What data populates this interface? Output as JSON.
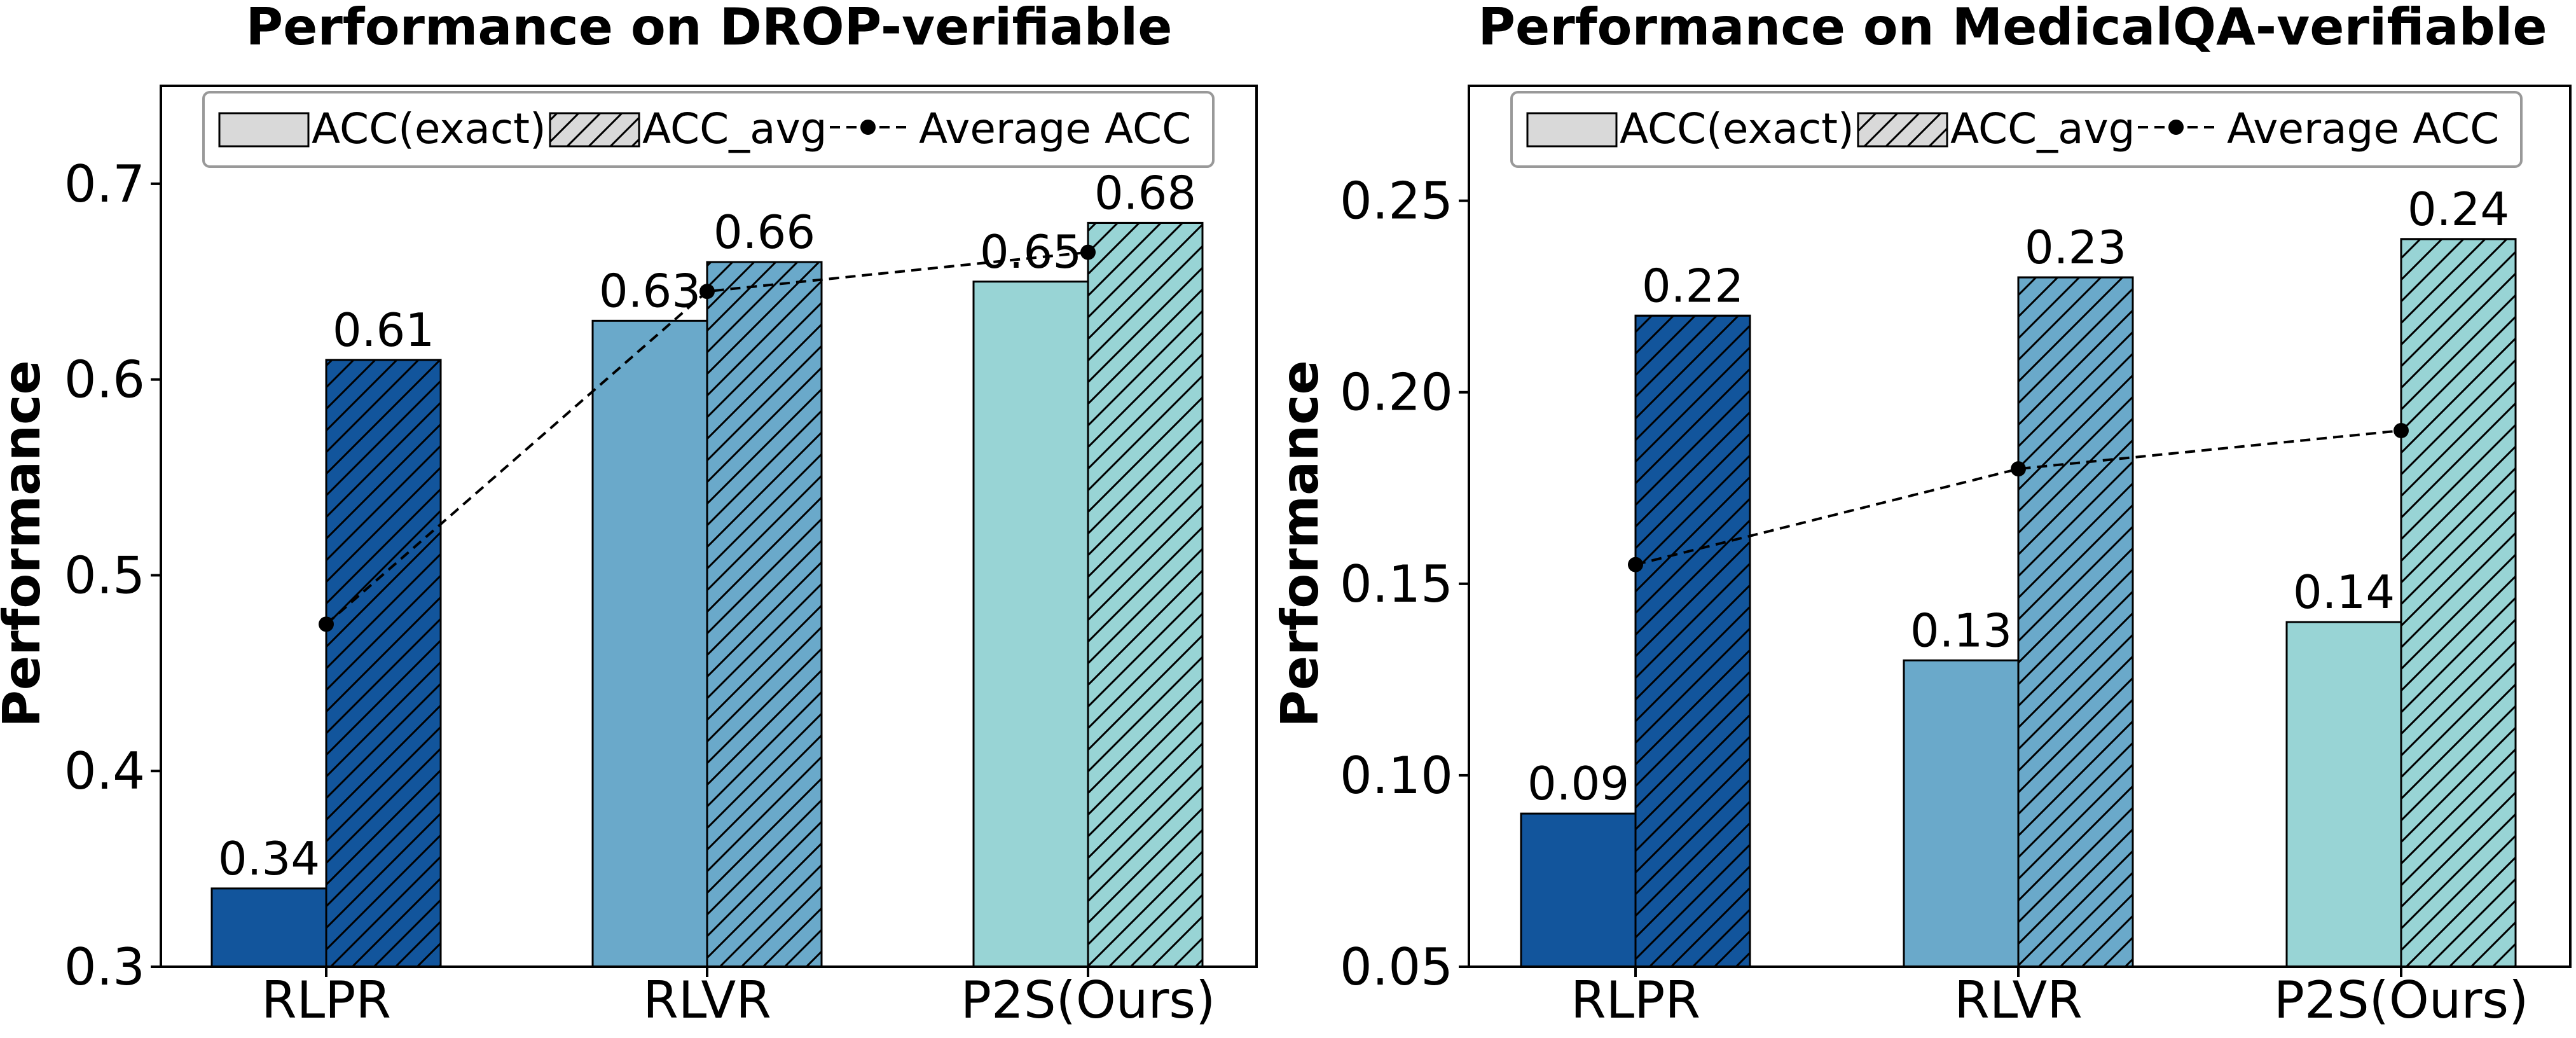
{
  "colors": {
    "RLPR": "#12559c",
    "RLVR": "#6aa9ca",
    "P2S(Ours)": "#98d4d5",
    "legend_swatch": "#d9d9d9",
    "line": "#000000"
  },
  "legend": {
    "exact": "ACC(exact)",
    "avg": "ACC_avg",
    "average": "Average ACC"
  },
  "chart_data": [
    {
      "type": "bar",
      "title": "Performance on DROP-verifiable",
      "ylabel": "Performance",
      "xlabel": "",
      "categories": [
        "RLPR",
        "RLVR",
        "P2S(Ours)"
      ],
      "series": [
        {
          "name": "ACC(exact)",
          "hatch": false,
          "values": [
            0.34,
            0.63,
            0.65
          ],
          "labels": [
            "0.34",
            "0.63",
            "0.65"
          ]
        },
        {
          "name": "ACC_avg",
          "hatch": true,
          "values": [
            0.61,
            0.66,
            0.68
          ],
          "labels": [
            "0.61",
            "0.66",
            "0.68"
          ]
        }
      ],
      "line": {
        "name": "Average ACC",
        "values": [
          0.475,
          0.645,
          0.665
        ]
      },
      "ylim": [
        0.3,
        0.75
      ],
      "yticks": [
        0.3,
        0.4,
        0.5,
        0.6,
        0.7
      ],
      "ytick_labels": [
        "0.3",
        "0.4",
        "0.5",
        "0.6",
        "0.7"
      ],
      "grid": false,
      "legend_position": "top-center"
    },
    {
      "type": "bar",
      "title": "Performance on MedicalQA-verifiable",
      "ylabel": "Performance",
      "xlabel": "",
      "categories": [
        "RLPR",
        "RLVR",
        "P2S(Ours)"
      ],
      "series": [
        {
          "name": "ACC(exact)",
          "hatch": false,
          "values": [
            0.09,
            0.13,
            0.14
          ],
          "labels": [
            "0.09",
            "0.13",
            "0.14"
          ]
        },
        {
          "name": "ACC_avg",
          "hatch": true,
          "values": [
            0.22,
            0.23,
            0.24
          ],
          "labels": [
            "0.22",
            "0.23",
            "0.24"
          ]
        }
      ],
      "line": {
        "name": "Average ACC",
        "values": [
          0.155,
          0.18,
          0.19
        ]
      },
      "ylim": [
        0.05,
        0.28
      ],
      "yticks": [
        0.05,
        0.1,
        0.15,
        0.2,
        0.25
      ],
      "ytick_labels": [
        "0.05",
        "0.10",
        "0.15",
        "0.20",
        "0.25"
      ],
      "grid": false,
      "legend_position": "top-center"
    }
  ]
}
